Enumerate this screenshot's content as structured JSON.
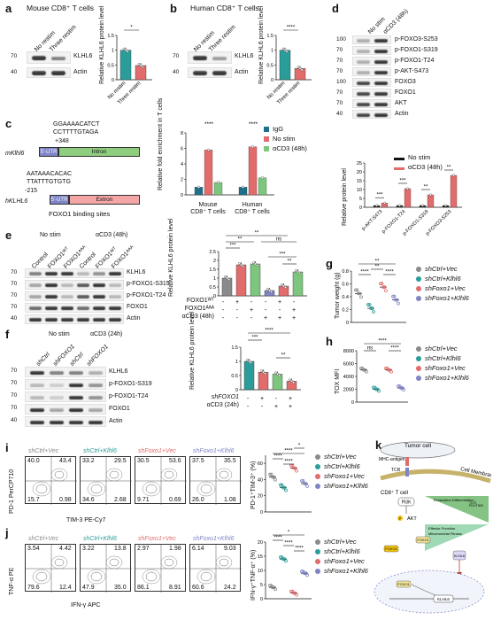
{
  "panels": {
    "a": {
      "letter": "a",
      "title": "Mouse CD8⁺ T cells",
      "lanes": [
        "No restim",
        "Three restim"
      ],
      "bands": [
        "KLHL6",
        "Actin"
      ],
      "kda": [
        "70",
        "40"
      ],
      "ylabel": "Relative KLHL6 protein level",
      "sig": "*"
    },
    "b": {
      "letter": "b",
      "title": "Human CD8⁺ T cells",
      "lanes": [
        "No restim",
        "Three restim"
      ],
      "bands": [
        "KLHL6",
        "Actin"
      ],
      "kda": [
        "70",
        "40"
      ],
      "ylabel": "Relative KLHL6 protein level",
      "sig": "****"
    },
    "c": {
      "letter": "c",
      "mouse_gene": "mKlhl6",
      "human_gene": "hKLHL6",
      "mouse_seq1": "GGAAAACATCT",
      "mouse_seq2": "CCTTTTGTAGA",
      "mouse_pos": "+348",
      "human_seq1": "AATAAACACAC",
      "human_seq2": "TTATTTGTGTG",
      "human_pos": "-215",
      "utr": "5'-UTR",
      "intron": "Intron",
      "extron": "Extron",
      "caption": "FOXO1 binding sites",
      "ylabel": "Relative fold enrichment in T cells",
      "groups": [
        "Mouse CD8⁺ T cells",
        "Human CD8⁺ T cells"
      ],
      "legend": [
        "IgG",
        "No stim",
        "αCD3 (48h)"
      ],
      "sig": "****"
    },
    "d": {
      "letter": "d",
      "lanes": [
        "No stim",
        "αCD3 (48h)"
      ],
      "bands": [
        "p-FOXO3-S253",
        "p-FOXO1-S319",
        "p-FOXO1-T24",
        "p-AKT-S473",
        "FOXO3",
        "FOXO1",
        "AKT",
        "Actin"
      ],
      "kda": [
        "100",
        "70",
        "70",
        "70",
        "100",
        "70",
        "70",
        "40"
      ],
      "ylabel": "Relative protein level",
      "legend": [
        "No stim",
        "αCD3 (48h)"
      ],
      "sig": [
        "***",
        "***",
        "**",
        "**"
      ]
    },
    "e": {
      "letter": "e",
      "group_labels": [
        "No stim",
        "αCD3 (48h)"
      ],
      "lanes": [
        "Control",
        "FOXO1ᵂᵀ",
        "FOXO1ᴬᴬᴬ",
        "Control",
        "FOXO1ᵂᵀ",
        "FOXO1ᴬᴬᴬ"
      ],
      "bands": [
        "KLHL6",
        "p-FOXO1-S319",
        "p-FOXO1-T24",
        "FOXO1",
        "Actin"
      ],
      "kda": [
        "70",
        "70",
        "70",
        "70",
        "40"
      ],
      "ylabel": "Relative KLHL6 protein level",
      "row_labels": [
        "FOXO1ᵂᵀ",
        "FOXO1ᴬᴬᴬ",
        "αCD3 (48h)"
      ],
      "sig": [
        "**",
        "**",
        "***",
        "ns",
        "***",
        "**"
      ]
    },
    "f": {
      "letter": "f",
      "group_labels": [
        "No stim",
        "αCD3 (24h)"
      ],
      "lanes": [
        "shCtrl",
        "shFOXO1",
        "shCtrl",
        "shFOXO1"
      ],
      "bands": [
        "KLHL6",
        "p-FOXO1-S319",
        "p-FOXO1-T24",
        "FOXO1",
        "Actin"
      ],
      "kda": [
        "70",
        "70",
        "70",
        "70",
        "40"
      ],
      "ylabel": "Relative KLHL6 protein level",
      "row_labels": [
        "shFOXO1",
        "αCD3 (24h)"
      ],
      "sig": [
        "****",
        "***",
        "**"
      ]
    },
    "g": {
      "letter": "g",
      "ylabel": "Tumor weight (g)",
      "sig": [
        "**",
        "**",
        "****",
        "****"
      ]
    },
    "h": {
      "letter": "h",
      "ylabel": "TOX MFI",
      "sig": [
        "****",
        "ns",
        "****"
      ]
    },
    "i": {
      "letter": "i",
      "xlabel": "TIM-3 PE-Cy7",
      "ylabel": "PD-1 PerCP710",
      "ylabel2": "PD-1⁺TIM-3⁺ (%)",
      "sig": [
        "*",
        "****",
        "****",
        "****"
      ]
    },
    "j": {
      "letter": "j",
      "xlabel": "IFN-γ APC",
      "ylabel": "TNF-α PE",
      "ylabel2": "IFN-γ⁺TNF-α⁺ (%)",
      "sig": [
        "*",
        "****",
        "****",
        "****"
      ]
    },
    "k": {
      "letter": "k",
      "tumor": "Tumor cell",
      "membrane": "Cell Membrane",
      "mhc": "MHC-antigen",
      "tcr": "TCR",
      "tcell": "CD8⁺ T cell",
      "pi3k": "PI3K",
      "akt": "AKT",
      "foxo1": "FOXO1",
      "klhl6": "KLHL6",
      "p": "P",
      "tri1": "Exhaustion Differentiation",
      "tri2": "Effector Function",
      "tri3": "Mitochondrial Fitness",
      "tri4": "TCF1",
      "tri5": "PD1/TIM3"
    }
  },
  "groups": [
    "shCtrl+Vec",
    "shCtrl+Klhl6",
    "shFoxo1+Vec",
    "shFoxo1+Klhl6"
  ],
  "group_colors": [
    "#8a8a8a",
    "#2a9d9a",
    "#e26b6b",
    "#7f84c7"
  ],
  "flow_i": [
    {
      "head": "shCtrl+Vec",
      "tl": "40.0",
      "tr": "43.4",
      "bl": "15.7",
      "br": "0.98"
    },
    {
      "head": "shCtrl+Klhl6",
      "tl": "33.2",
      "tr": "29.5",
      "bl": "34.6",
      "br": "2.68"
    },
    {
      "head": "shFoxo1+Vec",
      "tl": "30.5",
      "tr": "53.6",
      "bl": "9.71",
      "br": "0.69"
    },
    {
      "head": "shFoxo1+Klhl6",
      "tl": "37.5",
      "tr": "35.5",
      "bl": "26.0",
      "br": "1.08"
    }
  ],
  "flow_j": [
    {
      "head": "shCtrl+Vec",
      "tl": "3.54",
      "tr": "4.42",
      "bl": "79.6",
      "br": "12.4"
    },
    {
      "head": "shCtrl+Klhl6",
      "tl": "3.22",
      "tr": "13.8",
      "bl": "47.9",
      "br": "35.0"
    },
    {
      "head": "shFoxo1+Vec",
      "tl": "2.97",
      "tr": "1.98",
      "bl": "86.1",
      "br": "8.91"
    },
    {
      "head": "shFoxo1+Klhl6",
      "tl": "6.14",
      "tr": "9.03",
      "bl": "60.6",
      "br": "24.2"
    }
  ],
  "colors": {
    "grey": "#8a8a8a",
    "teal": "#2a9d9a",
    "red": "#e26b6b",
    "purple": "#7f84c7",
    "green": "#7dc67d"
  },
  "chart_data": [
    {
      "type": "bar",
      "panel": "a",
      "categories": [
        "No restim",
        "Three restim"
      ],
      "values": [
        1.0,
        0.48
      ],
      "ylim": [
        0,
        1.5
      ]
    },
    {
      "type": "bar",
      "panel": "b",
      "categories": [
        "No restim",
        "Three restim"
      ],
      "values": [
        1.0,
        0.38
      ],
      "ylim": [
        0,
        1.5
      ]
    },
    {
      "type": "bar",
      "panel": "c",
      "categories": [
        "Mouse CD8⁺ T cells",
        "Human CD8⁺ T cells"
      ],
      "series": [
        {
          "name": "IgG",
          "values": [
            1.0,
            1.0
          ]
        },
        {
          "name": "No stim",
          "values": [
            5.8,
            6.2
          ]
        },
        {
          "name": "αCD3 (48h)",
          "values": [
            1.6,
            2.2
          ]
        }
      ],
      "ylim": [
        0,
        8
      ]
    },
    {
      "type": "bar",
      "panel": "d",
      "categories": [
        "p-AKT-S473",
        "p-FOXO1-T24",
        "p-FOXO1-S319",
        "p-FOXO3-S253"
      ],
      "series": [
        {
          "name": "No stim",
          "values": [
            1.0,
            1.0,
            1.0,
            1.0
          ]
        },
        {
          "name": "αCD3 (48h)",
          "values": [
            2.4,
            10.5,
            7.0,
            18.0
          ]
        }
      ],
      "ylim": [
        0,
        25
      ]
    },
    {
      "type": "bar",
      "panel": "e",
      "categories": [
        "1",
        "2",
        "3",
        "4",
        "5",
        "6"
      ],
      "values": [
        1.0,
        1.75,
        1.8,
        0.3,
        0.55,
        1.35
      ],
      "ylim": [
        0,
        2.5
      ]
    },
    {
      "type": "bar",
      "panel": "f",
      "categories": [
        "1",
        "2",
        "3",
        "4"
      ],
      "values": [
        1.0,
        0.62,
        0.55,
        0.3
      ],
      "ylim": [
        0,
        1.5
      ]
    },
    {
      "type": "scatter",
      "panel": "g",
      "categories": [
        "shCtrl+Vec",
        "shCtrl+Klhl6",
        "shFoxo1+Vec",
        "shFoxo1+Klhl6"
      ],
      "values": [
        0.45,
        0.22,
        0.55,
        0.35
      ],
      "ylim": [
        0,
        0.8
      ]
    },
    {
      "type": "scatter",
      "panel": "h",
      "categories": [
        "shCtrl+Vec",
        "shCtrl+Klhl6",
        "shFoxo1+Vec",
        "shFoxo1+Klhl6"
      ],
      "values": [
        5000,
        2000,
        5000,
        2200
      ],
      "ylim": [
        0,
        8000
      ]
    },
    {
      "type": "scatter",
      "panel": "i",
      "categories": [
        "shCtrl+Vec",
        "shCtrl+Klhl6",
        "shFoxo1+Vec",
        "shFoxo1+Klhl6"
      ],
      "values": [
        43,
        30,
        54,
        35
      ],
      "ylim": [
        0,
        70
      ]
    },
    {
      "type": "scatter",
      "panel": "j",
      "categories": [
        "shCtrl+Vec",
        "shCtrl+Klhl6",
        "shFoxo1+Vec",
        "shFoxo1+Klhl6"
      ],
      "values": [
        4,
        14,
        2,
        9
      ],
      "ylim": [
        0,
        20
      ]
    }
  ]
}
